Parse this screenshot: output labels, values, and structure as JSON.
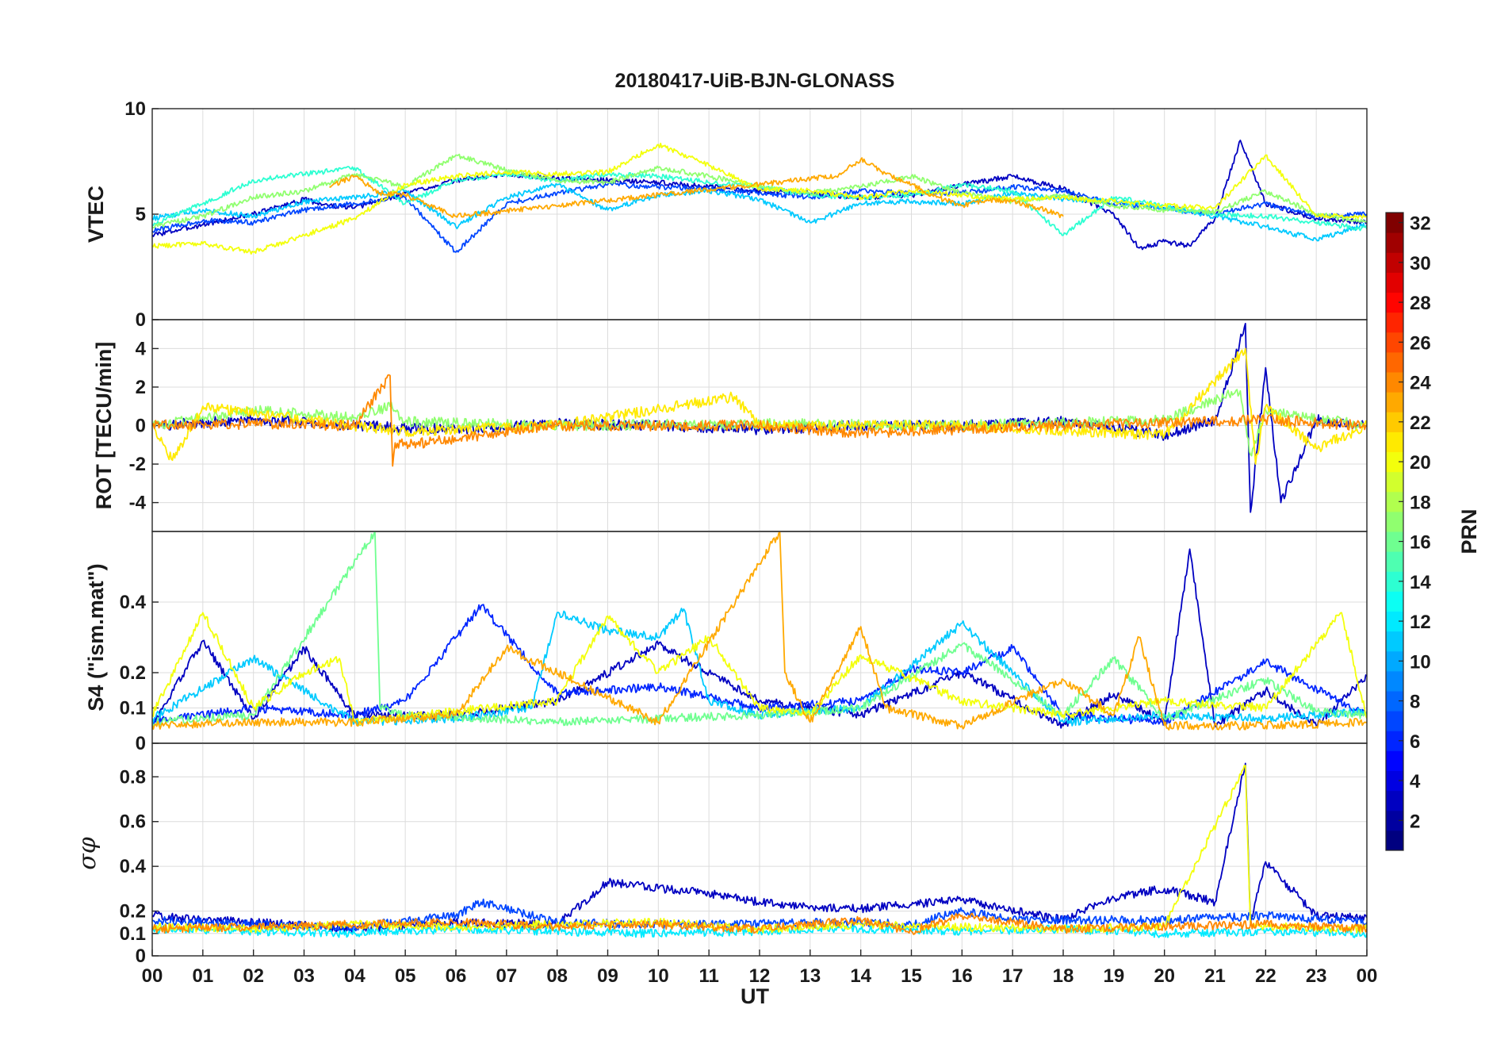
{
  "chart_data": {
    "type": "line",
    "title": "20180417-UiB-BJN-GLONASS",
    "xlabel": "UT",
    "x_ticks": [
      "00",
      "01",
      "02",
      "03",
      "04",
      "05",
      "06",
      "07",
      "08",
      "09",
      "10",
      "11",
      "12",
      "13",
      "14",
      "15",
      "16",
      "17",
      "18",
      "19",
      "20",
      "21",
      "22",
      "23",
      "00"
    ],
    "xlim": [
      0,
      24
    ],
    "grid": true,
    "panels": [
      {
        "ylabel": "VTEC",
        "ylim": [
          0,
          10
        ],
        "y_ticks": [
          "0",
          "5",
          "10"
        ],
        "series": [
          {
            "prn": 3,
            "x": [
              0,
              1,
              2,
              3,
              3.5,
              4,
              5,
              6,
              7,
              8,
              9,
              10,
              11,
              12,
              13,
              14,
              15,
              16,
              17,
              18,
              19,
              19.5,
              20,
              20.5,
              21,
              21.5,
              22,
              23,
              24
            ],
            "y": [
              4.0,
              4.5,
              5.0,
              5.7,
              5.4,
              5.3,
              6.0,
              6.6,
              6.9,
              6.7,
              6.6,
              6.5,
              6.3,
              6.1,
              6.0,
              5.8,
              5.9,
              6.4,
              6.8,
              6.2,
              5.0,
              3.4,
              3.7,
              3.5,
              4.8,
              8.5,
              5.5,
              4.8,
              4.6
            ]
          },
          {
            "prn": 7,
            "x": [
              0,
              1,
              2,
              3,
              4,
              5,
              6,
              7,
              8,
              9,
              10,
              11,
              12,
              13,
              14,
              15,
              16,
              17,
              18,
              19,
              20,
              21,
              22,
              23,
              24
            ],
            "y": [
              4.2,
              4.7,
              4.6,
              5.2,
              5.5,
              5.8,
              3.2,
              5.5,
              6.0,
              6.4,
              6.3,
              6.2,
              6.0,
              5.8,
              6.1,
              6.0,
              6.0,
              6.3,
              6.1,
              5.5,
              5.3,
              5.0,
              5.5,
              4.9,
              5.0
            ]
          },
          {
            "prn": 11,
            "x": [
              0,
              1,
              2,
              3,
              4,
              5,
              6,
              7,
              8,
              9,
              10,
              11,
              12,
              13,
              14,
              15,
              16,
              17,
              18,
              19,
              20,
              21,
              22,
              23,
              24
            ],
            "y": [
              4.8,
              5.2,
              4.9,
              5.6,
              5.8,
              6.1,
              4.4,
              5.8,
              6.4,
              5.2,
              5.9,
              6.1,
              5.7,
              4.6,
              5.5,
              5.6,
              5.5,
              6.0,
              5.7,
              5.6,
              5.3,
              4.9,
              4.4,
              3.8,
              4.5
            ]
          },
          {
            "prn": 14,
            "x": [
              0,
              1,
              2,
              3,
              4,
              5,
              6,
              7,
              8,
              9,
              10,
              11,
              12,
              13,
              14,
              15,
              16,
              17,
              18,
              19,
              20,
              21,
              22,
              23,
              24
            ],
            "y": [
              4.5,
              5.5,
              6.6,
              6.9,
              7.2,
              5.5,
              6.6,
              6.9,
              6.6,
              6.9,
              6.8,
              6.5,
              6.3,
              5.9,
              5.8,
              5.9,
              6.4,
              6.1,
              4.0,
              5.8,
              5.4,
              5.0,
              4.9,
              4.6,
              4.3
            ]
          },
          {
            "prn": 17,
            "x": [
              0,
              1,
              2,
              3,
              4,
              5,
              6,
              7,
              8,
              9,
              10,
              11,
              12,
              13,
              14,
              15,
              16,
              17,
              18,
              19,
              20,
              21,
              22,
              23,
              24
            ],
            "y": [
              4.4,
              4.9,
              5.8,
              6.1,
              6.9,
              6.3,
              7.8,
              7.1,
              6.6,
              6.5,
              7.2,
              6.8,
              6.3,
              6.0,
              6.3,
              6.8,
              6.0,
              5.6,
              5.9,
              5.4,
              5.2,
              5.1,
              6.1,
              5.0,
              4.6
            ]
          },
          {
            "prn": 20,
            "x": [
              0,
              1,
              2,
              3,
              4,
              5,
              6,
              7,
              8,
              9,
              10,
              11,
              12,
              13,
              14,
              15,
              16,
              17,
              18,
              19,
              20,
              21,
              22,
              23,
              24
            ],
            "y": [
              3.5,
              3.6,
              3.2,
              4.0,
              4.8,
              6.4,
              6.8,
              7.0,
              6.9,
              7.0,
              8.3,
              7.3,
              6.2,
              6.1,
              5.8,
              6.1,
              5.9,
              5.7,
              5.8,
              5.6,
              5.4,
              5.3,
              7.8,
              4.9,
              4.9
            ]
          },
          {
            "prn": 23,
            "x": [
              3.5,
              4,
              4.5,
              5,
              5.5,
              6,
              13.5,
              14,
              14.5,
              15,
              15.5,
              16,
              16.5,
              17,
              17.5,
              18
            ],
            "y": [
              6.3,
              6.8,
              6.0,
              5.9,
              5.4,
              4.9,
              6.8,
              7.6,
              6.9,
              6.4,
              5.8,
              5.4,
              5.7,
              5.6,
              5.3,
              4.9
            ]
          }
        ]
      },
      {
        "ylabel": "ROT [TECU/min]",
        "ylim": [
          -5.5,
          5.5
        ],
        "y_ticks": [
          "-4",
          "-2",
          "0",
          "2",
          "4"
        ],
        "series": [
          {
            "prn": 3,
            "x": [
              0,
              2,
              4,
              6,
              8,
              10,
              12,
              14,
              16,
              18,
              20,
              21,
              21.6,
              21.7,
              22,
              22.3,
              23,
              24
            ],
            "y": [
              0,
              0.3,
              0,
              -0.2,
              0.1,
              0,
              -0.2,
              0,
              0,
              0.2,
              -0.5,
              0.3,
              5.3,
              -4.5,
              3.0,
              -4.0,
              0.3,
              0
            ]
          },
          {
            "prn": 17,
            "x": [
              0,
              2,
              4,
              4.7,
              5,
              8,
              12,
              16,
              20,
              21.5,
              21.7,
              22,
              24
            ],
            "y": [
              0,
              0.8,
              0.4,
              1.0,
              0.2,
              0,
              0.1,
              0,
              0.3,
              1.8,
              -1.5,
              0.8,
              0
            ]
          },
          {
            "prn": 21,
            "x": [
              0,
              0.4,
              1,
              3,
              5,
              8,
              11.5,
              12,
              16,
              20,
              21.6,
              21.8,
              22,
              23,
              24
            ],
            "y": [
              0,
              -1.8,
              1.0,
              0.3,
              -0.3,
              0,
              1.5,
              0,
              0,
              -0.5,
              4.0,
              -2.0,
              1.0,
              -1.2,
              0
            ]
          },
          {
            "prn": 24,
            "x": [
              0,
              2,
              4,
              4.7,
              4.75,
              4.8,
              5,
              8,
              12,
              14,
              18,
              22,
              24
            ],
            "y": [
              0,
              0.1,
              0,
              2.6,
              -2.1,
              -0.9,
              -1.0,
              0,
              0,
              -0.4,
              0,
              0.3,
              0
            ]
          }
        ]
      },
      {
        "ylabel": "S4 (\"ism.mat\")",
        "ylim": [
          0,
          0.6
        ],
        "y_ticks": [
          "0",
          "0.1",
          "0.2",
          "0.4"
        ],
        "series": [
          {
            "prn": 3,
            "x": [
              0,
              1,
              2,
              3,
              4,
              6,
              8,
              10,
              12,
              14,
              16,
              18,
              19,
              20,
              20.5,
              21,
              22,
              23,
              24
            ],
            "y": [
              0.05,
              0.29,
              0.07,
              0.27,
              0.08,
              0.08,
              0.12,
              0.28,
              0.12,
              0.08,
              0.2,
              0.05,
              0.14,
              0.06,
              0.55,
              0.05,
              0.15,
              0.05,
              0.19
            ]
          },
          {
            "prn": 6,
            "x": [
              0,
              2,
              4,
              5,
              6,
              6.5,
              8,
              10,
              12,
              14,
              15,
              16,
              17,
              18,
              20,
              22,
              24
            ],
            "y": [
              0.06,
              0.1,
              0.08,
              0.12,
              0.3,
              0.39,
              0.14,
              0.16,
              0.1,
              0.12,
              0.21,
              0.2,
              0.27,
              0.08,
              0.06,
              0.23,
              0.08
            ]
          },
          {
            "prn": 11,
            "x": [
              0,
              2,
              4,
              6,
              7.5,
              8,
              9,
              10,
              10.5,
              11,
              12,
              14,
              16,
              18,
              20,
              22,
              24
            ],
            "y": [
              0.07,
              0.24,
              0.06,
              0.07,
              0.1,
              0.37,
              0.32,
              0.3,
              0.38,
              0.12,
              0.08,
              0.1,
              0.34,
              0.06,
              0.08,
              0.07,
              0.09
            ]
          },
          {
            "prn": 16,
            "x": [
              0,
              2,
              4.4,
              4.5,
              5,
              8,
              12,
              14,
              16,
              18,
              19,
              20,
              22,
              23,
              24
            ],
            "y": [
              0.06,
              0.08,
              0.6,
              0.1,
              0.08,
              0.06,
              0.08,
              0.1,
              0.28,
              0.08,
              0.24,
              0.07,
              0.18,
              0.09,
              0.08
            ]
          },
          {
            "prn": 20,
            "x": [
              0,
              1,
              2,
              3,
              3.7,
              4,
              8,
              9,
              10,
              11,
              12,
              13,
              14,
              16,
              18,
              20,
              22,
              23.5,
              24
            ],
            "y": [
              0.08,
              0.37,
              0.1,
              0.2,
              0.24,
              0.06,
              0.12,
              0.36,
              0.2,
              0.3,
              0.1,
              0.08,
              0.25,
              0.12,
              0.08,
              0.12,
              0.1,
              0.37,
              0.07
            ]
          },
          {
            "prn": 23,
            "x": [
              0,
              2,
              4,
              6,
              7,
              10,
              12.4,
              12.5,
              13,
              14,
              14.5,
              16,
              18,
              19,
              19.5,
              20,
              22,
              24
            ],
            "y": [
              0.05,
              0.06,
              0.06,
              0.08,
              0.27,
              0.06,
              0.6,
              0.2,
              0.06,
              0.33,
              0.1,
              0.05,
              0.18,
              0.08,
              0.3,
              0.05,
              0.05,
              0.06
            ]
          }
        ]
      },
      {
        "ylabel": "σφ",
        "ylim": [
          0,
          0.95
        ],
        "y_ticks": [
          "0",
          "0.1",
          "0.2",
          "0.4",
          "0.6",
          "0.8"
        ],
        "series": [
          {
            "prn": 3,
            "x": [
              0,
              1,
              2,
              4,
              6,
              8,
              9,
              10,
              11,
              12,
              13,
              14,
              16,
              18,
              19,
              20,
              21,
              21.6,
              21.7,
              22,
              23,
              24
            ],
            "y": [
              0.18,
              0.16,
              0.15,
              0.12,
              0.15,
              0.14,
              0.33,
              0.3,
              0.28,
              0.24,
              0.22,
              0.21,
              0.25,
              0.16,
              0.26,
              0.3,
              0.24,
              0.86,
              0.15,
              0.42,
              0.18,
              0.17
            ]
          },
          {
            "prn": 7,
            "x": [
              0,
              2,
              4,
              6,
              6.5,
              8,
              10,
              14,
              15,
              16,
              17,
              20,
              22,
              24
            ],
            "y": [
              0.16,
              0.14,
              0.13,
              0.18,
              0.24,
              0.15,
              0.14,
              0.15,
              0.14,
              0.2,
              0.16,
              0.16,
              0.18,
              0.15
            ]
          },
          {
            "prn": 12,
            "x": [
              0,
              2,
              4,
              6,
              8,
              10,
              12,
              14,
              16,
              18,
              20,
              22,
              24
            ],
            "y": [
              0.12,
              0.11,
              0.1,
              0.12,
              0.11,
              0.1,
              0.11,
              0.12,
              0.11,
              0.12,
              0.1,
              0.11,
              0.1
            ]
          },
          {
            "prn": 20,
            "x": [
              0,
              2,
              4,
              6,
              8,
              10,
              12,
              14,
              16,
              18,
              20,
              21.6,
              21.7,
              22,
              24
            ],
            "y": [
              0.13,
              0.12,
              0.14,
              0.13,
              0.14,
              0.15,
              0.12,
              0.14,
              0.13,
              0.12,
              0.13,
              0.85,
              0.14,
              0.13,
              0.12
            ]
          },
          {
            "prn": 24,
            "x": [
              0,
              2,
              4,
              6,
              8,
              10,
              12,
              14,
              15,
              16,
              17,
              18,
              20,
              22,
              24
            ],
            "y": [
              0.12,
              0.13,
              0.14,
              0.15,
              0.13,
              0.14,
              0.12,
              0.16,
              0.11,
              0.18,
              0.15,
              0.12,
              0.13,
              0.14,
              0.12
            ]
          }
        ]
      }
    ],
    "colorbar": {
      "label": "PRN",
      "range": [
        1,
        32
      ],
      "ticks": [
        "2",
        "4",
        "6",
        "8",
        "10",
        "12",
        "14",
        "16",
        "18",
        "20",
        "22",
        "24",
        "26",
        "28",
        "30",
        "32"
      ],
      "colormap": "jet"
    }
  }
}
